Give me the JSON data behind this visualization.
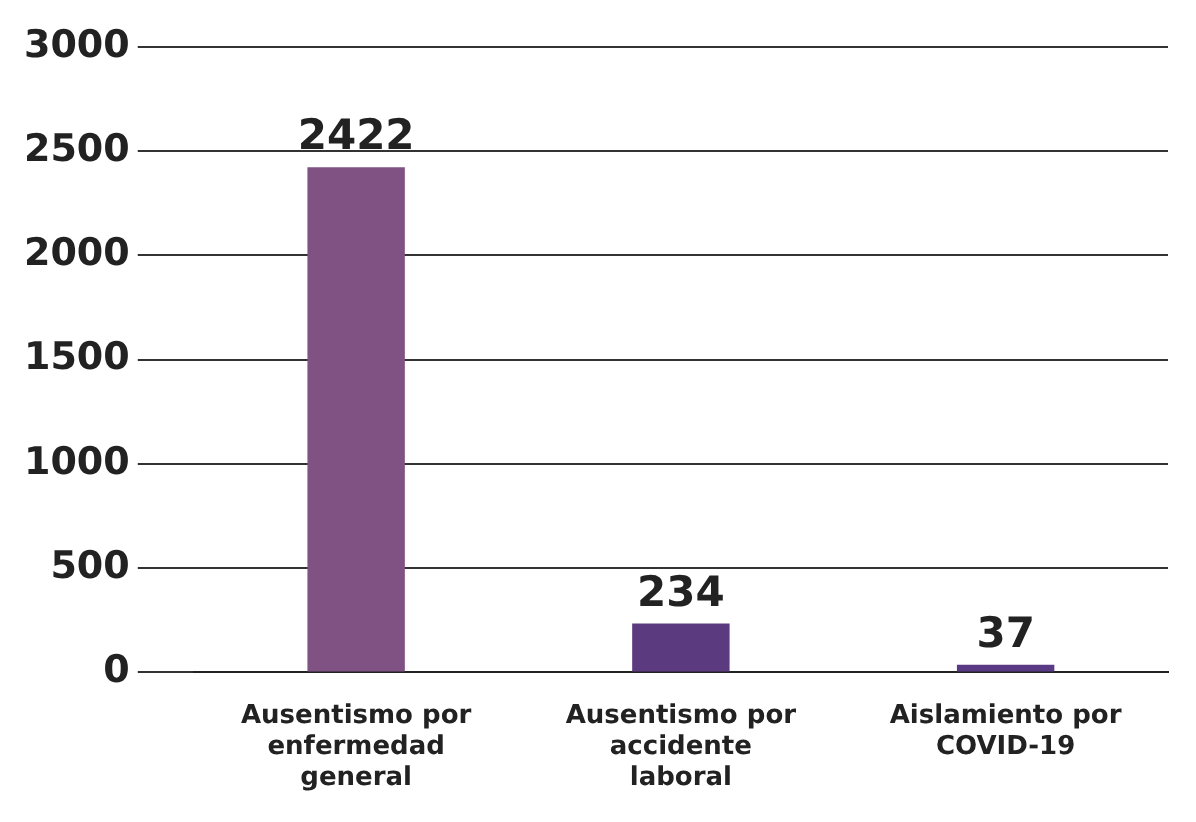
{
  "chart_data": {
    "type": "bar",
    "categories": [
      "Ausentismo por enfermedad general",
      "Ausentismo por accidente laboral",
      "Aislamiento por COVID-19"
    ],
    "values": [
      2422,
      234,
      37
    ],
    "colors": [
      "#7f5283",
      "#5c3a80",
      "#5b3a85"
    ],
    "ylim": [
      0,
      3000
    ],
    "yticks": [
      0,
      500,
      1000,
      1500,
      2000,
      2500,
      3000
    ],
    "grid": "y",
    "legend": false,
    "data_labels": true
  }
}
